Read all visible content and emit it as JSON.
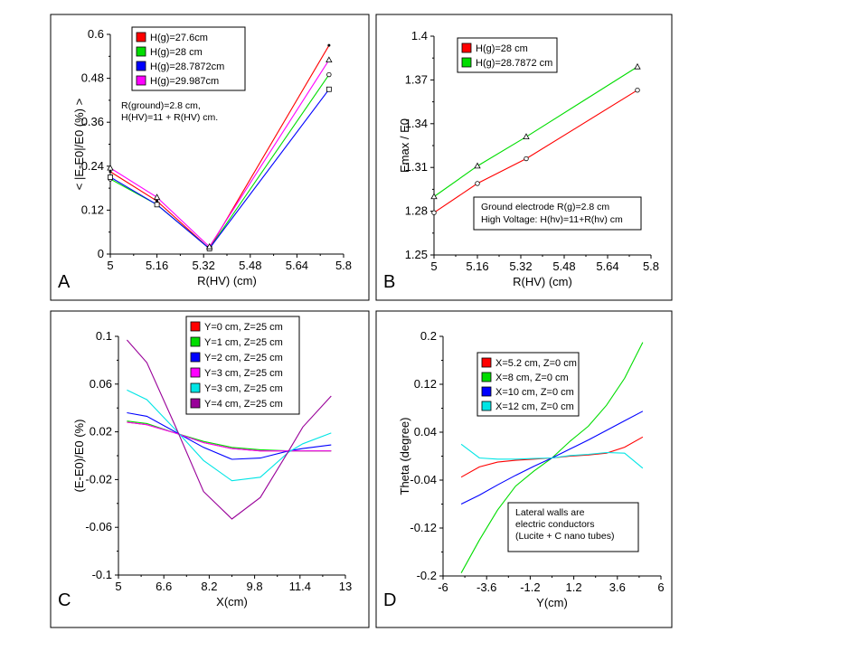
{
  "chart_data": [
    {
      "panel_label": "A",
      "type": "line",
      "xlabel": "R(HV)  (cm)",
      "ylabel": "< |E-E0|/E0 (%) >",
      "xlim": [
        5,
        5.8
      ],
      "ylim": [
        0,
        0.6
      ],
      "xticks": [
        "5",
        "5.16",
        "5.32",
        "5.48",
        "5.64",
        "5.8"
      ],
      "yticks": [
        "0",
        "0.12",
        "0.24",
        "0.36",
        "0.48",
        "0.6"
      ],
      "legend_position": "top-left",
      "annotation": [
        "R(ground)=2.8 cm,",
        "H(HV)=11 + R(HV) cm."
      ],
      "series": [
        {
          "name": "H(g)=27.6cm",
          "color": "#ff0000",
          "marker": "dot",
          "x": [
            5,
            5.16,
            5.34,
            5.75
          ],
          "y": [
            0.225,
            0.145,
            0.015,
            0.57
          ]
        },
        {
          "name": "H(g)=28 cm",
          "color": "#00dd00",
          "marker": "circle",
          "x": [
            5,
            5.16,
            5.34,
            5.75
          ],
          "y": [
            0.205,
            0.135,
            0.015,
            0.49
          ]
        },
        {
          "name": "H(g)=28.7872cm",
          "color": "#0000ff",
          "marker": "square",
          "x": [
            5,
            5.16,
            5.34,
            5.75
          ],
          "y": [
            0.21,
            0.135,
            0.015,
            0.45
          ]
        },
        {
          "name": "H(g)=29.987cm",
          "color": "#ff00ff",
          "marker": "triangle",
          "x": [
            5,
            5.16,
            5.34,
            5.75
          ],
          "y": [
            0.235,
            0.155,
            0.02,
            0.53
          ]
        }
      ]
    },
    {
      "panel_label": "B",
      "type": "line",
      "xlabel": "R(HV)  (cm)",
      "ylabel": "Emax / E0",
      "xlim": [
        5,
        5.8
      ],
      "ylim": [
        1.25,
        1.4
      ],
      "xticks": [
        "5",
        "5.16",
        "5.32",
        "5.48",
        "5.64",
        "5.8"
      ],
      "yticks": [
        "1.25",
        "1.28",
        "1.31",
        "1.34",
        "1.37",
        "1.4"
      ],
      "legend_position": "top-left",
      "annotation": [
        "Ground electrode R(g)=2.8 cm",
        "High Voltage: H(hv)=11+R(hv) cm"
      ],
      "series": [
        {
          "name": "H(g)=28 cm",
          "color": "#ff0000",
          "marker": "circle",
          "x": [
            5,
            5.16,
            5.34,
            5.75
          ],
          "y": [
            1.279,
            1.299,
            1.316,
            1.363
          ]
        },
        {
          "name": "H(g)=28.7872 cm",
          "color": "#00dd00",
          "marker": "triangle",
          "x": [
            5,
            5.16,
            5.34,
            5.75
          ],
          "y": [
            1.29,
            1.311,
            1.331,
            1.379
          ]
        }
      ]
    },
    {
      "panel_label": "C",
      "type": "line",
      "xlabel": "X(cm)",
      "ylabel": "(E-E0)/E0 (%)",
      "xlim": [
        5,
        13
      ],
      "ylim": [
        -0.1,
        0.1
      ],
      "xticks": [
        "5",
        "6.6",
        "8.2",
        "9.8",
        "11.4",
        "13"
      ],
      "yticks": [
        "-0.1",
        "-0.06",
        "-0.02",
        "0.02",
        "0.06",
        "0.1"
      ],
      "legend_position": "top-right",
      "series": [
        {
          "name": "Y=0 cm, Z=25 cm",
          "color": "#ff0000",
          "x": [
            5.3,
            6,
            7,
            8,
            9,
            10,
            11,
            11.5,
            12.5
          ],
          "y": [
            0.028,
            0.026,
            0.019,
            0.011,
            0.006,
            0.004,
            0.004,
            0.004,
            0.004
          ]
        },
        {
          "name": "Y=1 cm, Z=25 cm",
          "color": "#00dd00",
          "x": [
            5.3,
            6,
            7,
            8,
            9,
            10,
            11,
            11.5,
            12.5
          ],
          "y": [
            0.029,
            0.027,
            0.019,
            0.012,
            0.007,
            0.005,
            0.004,
            0.004,
            0.004
          ]
        },
        {
          "name": "Y=2 cm, Z=25 cm",
          "color": "#0000ff",
          "x": [
            5.3,
            6,
            7,
            8,
            9,
            10,
            11,
            11.5,
            12.5
          ],
          "y": [
            0.036,
            0.033,
            0.02,
            0.007,
            -0.003,
            -0.002,
            0.004,
            0.006,
            0.009
          ]
        },
        {
          "name": "Y=3 cm, Z=25 cm",
          "color": "#ff00ff",
          "x": [
            5.3,
            6,
            7,
            8,
            9,
            10,
            11,
            11.5,
            12.5
          ],
          "y": [
            0.028,
            0.026,
            0.019,
            0.011,
            0.006,
            0.004,
            0.004,
            0.004,
            0.004
          ]
        },
        {
          "name": "Y=3 cm, Z=25 cm",
          "color": "#00e5e5",
          "x": [
            5.3,
            6,
            7,
            8,
            9,
            10,
            11,
            11.5,
            12.5
          ],
          "y": [
            0.055,
            0.047,
            0.022,
            -0.004,
            -0.021,
            -0.018,
            0.003,
            0.01,
            0.019
          ]
        },
        {
          "name": "Y=4 cm, Z=25 cm",
          "color": "#990099",
          "x": [
            5.3,
            6,
            7,
            8,
            9,
            10,
            11,
            11.5,
            12.5
          ],
          "y": [
            0.097,
            0.078,
            0.025,
            -0.03,
            -0.053,
            -0.035,
            0.004,
            0.024,
            0.05
          ]
        }
      ]
    },
    {
      "panel_label": "D",
      "type": "line",
      "xlabel": "Y(cm)",
      "ylabel": "Theta (degree)",
      "xlim": [
        -6,
        6
      ],
      "ylim": [
        -0.2,
        0.2
      ],
      "xticks": [
        "-6",
        "-3.6",
        "-1.2",
        "1.2",
        "3.6",
        "6"
      ],
      "yticks": [
        "-0.2",
        "-0.12",
        "-0.04",
        "0.04",
        "0.12",
        "0.2"
      ],
      "legend_position": "top-left",
      "annotation": [
        "Lateral walls are",
        "electric conductors",
        "(Lucite + C nano tubes)"
      ],
      "series": [
        {
          "name": "X=5.2 cm, Z=0 cm",
          "color": "#ff0000",
          "x": [
            -5,
            -4,
            -3,
            -2,
            -1,
            0,
            1,
            2,
            3,
            4,
            5
          ],
          "y": [
            -0.035,
            -0.018,
            -0.01,
            -0.007,
            -0.005,
            -0.003,
            0,
            0.002,
            0.005,
            0.015,
            0.032
          ]
        },
        {
          "name": "X=8 cm, Z=0 cm",
          "color": "#00dd00",
          "x": [
            -5,
            -4,
            -3,
            -2,
            -1,
            0,
            1,
            2,
            3,
            4,
            5
          ],
          "y": [
            -0.195,
            -0.14,
            -0.09,
            -0.05,
            -0.025,
            -0.003,
            0.025,
            0.05,
            0.085,
            0.13,
            0.19
          ]
        },
        {
          "name": "X=10 cm, Z=0 cm",
          "color": "#0000ff",
          "x": [
            -5,
            -4,
            -3,
            -2,
            -1,
            0,
            1,
            2,
            3,
            4,
            5
          ],
          "y": [
            -0.08,
            -0.065,
            -0.048,
            -0.032,
            -0.017,
            -0.003,
            0.012,
            0.027,
            0.043,
            0.059,
            0.075
          ]
        },
        {
          "name": "X=12 cm, Z=0 cm",
          "color": "#00e5e5",
          "x": [
            -5,
            -4,
            -3,
            -2,
            -1,
            0,
            1,
            2,
            3,
            4,
            5
          ],
          "y": [
            0.02,
            -0.003,
            -0.005,
            -0.005,
            -0.004,
            -0.003,
            0.001,
            0.003,
            0.006,
            0.005,
            -0.02
          ]
        }
      ]
    }
  ]
}
